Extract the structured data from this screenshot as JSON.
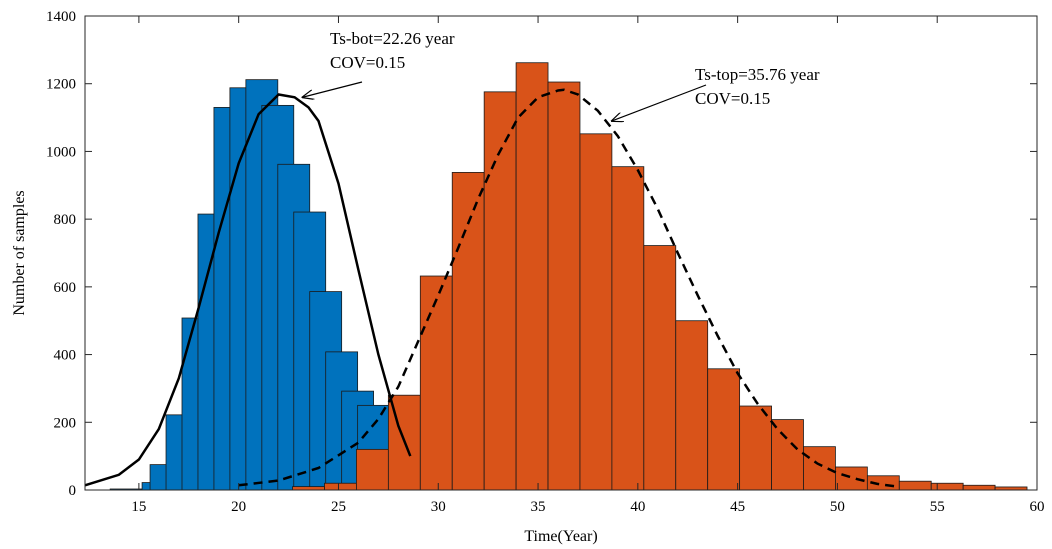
{
  "chart_data": {
    "type": "bar",
    "xlabel": "Time(Year)",
    "ylabel": "Number of samples",
    "xlim": [
      12.3,
      60
    ],
    "ylim": [
      0,
      1400
    ],
    "xticks": [
      "15",
      "20",
      "25",
      "30",
      "35",
      "40",
      "45",
      "50",
      "55",
      "60"
    ],
    "yticks": [
      "0",
      "200",
      "400",
      "600",
      "800",
      "1000",
      "1200",
      "1400"
    ],
    "bin_width": 1.6,
    "series": [
      {
        "kind": "histogram",
        "color": "#0072BD",
        "bins": [
          {
            "start": 13.56,
            "value": 3
          },
          {
            "start": 15.16,
            "value": 22
          },
          {
            "start": 15.56,
            "value": 75
          },
          {
            "start": 16.36,
            "value": 222
          },
          {
            "start": 17.16,
            "value": 508
          },
          {
            "start": 17.96,
            "value": 815
          },
          {
            "start": 18.76,
            "value": 1130
          },
          {
            "start": 19.56,
            "value": 1188
          },
          {
            "start": 20.36,
            "value": 1212
          },
          {
            "start": 21.16,
            "value": 1136
          },
          {
            "start": 21.96,
            "value": 962
          },
          {
            "start": 22.76,
            "value": 821
          },
          {
            "start": 23.56,
            "value": 586
          },
          {
            "start": 24.36,
            "value": 408
          },
          {
            "start": 25.16,
            "value": 292
          },
          {
            "start": 25.96,
            "value": 250
          }
        ]
      },
      {
        "kind": "histogram",
        "color": "#D95319",
        "bins": [
          {
            "start": 22.7,
            "value": 10
          },
          {
            "start": 24.3,
            "value": 20
          },
          {
            "start": 25.9,
            "value": 120
          },
          {
            "start": 27.5,
            "value": 280
          },
          {
            "start": 29.1,
            "value": 632
          },
          {
            "start": 30.7,
            "value": 938
          },
          {
            "start": 32.3,
            "value": 1176
          },
          {
            "start": 33.9,
            "value": 1262
          },
          {
            "start": 35.5,
            "value": 1205
          },
          {
            "start": 37.1,
            "value": 1052
          },
          {
            "start": 38.7,
            "value": 955
          },
          {
            "start": 40.3,
            "value": 722
          },
          {
            "start": 41.9,
            "value": 500
          },
          {
            "start": 43.5,
            "value": 358
          },
          {
            "start": 45.1,
            "value": 248
          },
          {
            "start": 46.7,
            "value": 208
          },
          {
            "start": 48.3,
            "value": 128
          },
          {
            "start": 49.9,
            "value": 68
          },
          {
            "start": 51.5,
            "value": 42
          },
          {
            "start": 53.1,
            "value": 26
          },
          {
            "start": 54.7,
            "value": 20
          },
          {
            "start": 56.3,
            "value": 14
          },
          {
            "start": 57.9,
            "value": 9
          }
        ]
      },
      {
        "kind": "curve",
        "style": "solid",
        "color": "#000000",
        "x": [
          12.3,
          14,
          15,
          16,
          17,
          18,
          19,
          20,
          21,
          22,
          22.8,
          23.5,
          24,
          25,
          26,
          27,
          28,
          28.6
        ],
        "y": [
          14,
          45,
          90,
          180,
          330,
          540,
          760,
          965,
          1110,
          1168,
          1160,
          1130,
          1090,
          905,
          650,
          400,
          190,
          100
        ]
      },
      {
        "kind": "curve",
        "style": "dashed",
        "color": "#000000",
        "x": [
          20,
          22,
          24,
          26,
          27,
          28,
          29,
          30,
          31,
          32,
          33,
          34,
          35,
          36,
          36.3,
          37,
          38,
          39,
          40,
          41,
          42,
          43,
          44,
          45,
          46,
          47,
          48,
          49,
          50,
          51,
          52,
          53
        ],
        "y": [
          14,
          28,
          65,
          140,
          210,
          305,
          440,
          575,
          715,
          860,
          990,
          1100,
          1160,
          1180,
          1182,
          1168,
          1120,
          1045,
          945,
          830,
          700,
          575,
          455,
          345,
          255,
          180,
          120,
          78,
          50,
          32,
          18,
          10
        ]
      }
    ],
    "annotations": [
      {
        "lines": [
          "Ts-bot=22.26 year",
          "COV=0.15"
        ],
        "arrow_to": [
          23.2,
          1160
        ]
      },
      {
        "lines": [
          "Ts-top=35.76 year",
          "COV=0.15"
        ],
        "arrow_to": [
          38.7,
          1090
        ]
      }
    ]
  }
}
